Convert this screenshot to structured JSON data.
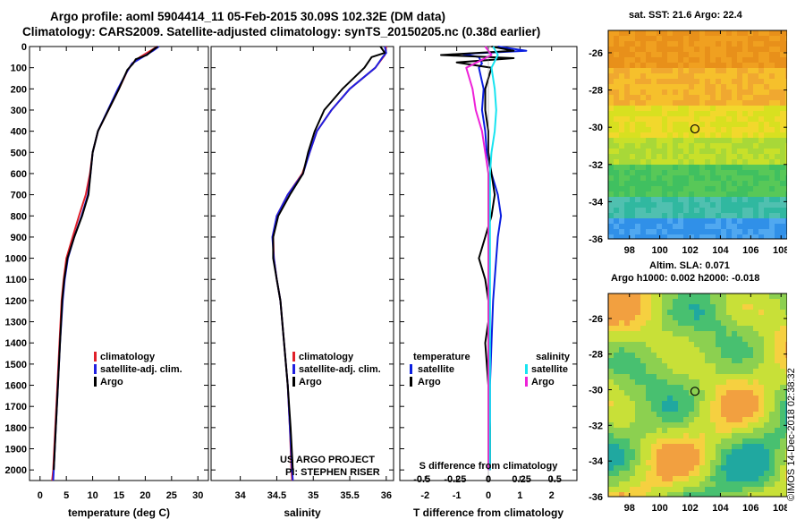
{
  "title": {
    "line1": "Argo profile: aoml 5904414_11 05-Feb-2015 30.09S 102.32E (DM data)",
    "line2": "Climatology: CARS2009. Satellite-adjusted climatology: synTS_20150205.nc (0.38d earlier)"
  },
  "colors": {
    "climatology": "#e0202a",
    "satellite": "#2020e0",
    "argo": "#000000",
    "sat_t": "#0a1ee0",
    "sat_s": "#18e4f0",
    "argo_s": "#ee22d8"
  },
  "maps": {
    "sst_title": "sat. SST: 21.6 Argo: 22.4",
    "sla_title_line1": "Altim. SLA: 0.071",
    "sla_title_line2": "Argo h1000: 0.002 h2000: -0.018",
    "y_ticks": [
      "-26",
      "-28",
      "-30",
      "-32",
      "-34",
      "-36"
    ],
    "x_ticks": [
      "98",
      "100",
      "102",
      "104",
      "106",
      "108"
    ],
    "argo_location": {
      "lon": 102.32,
      "lat": -30.09
    }
  },
  "credit": "©IMOS 14-Dec-2018 02:38:32",
  "chart_data": [
    {
      "type": "line",
      "panel": "temperature",
      "xlabel": "temperature (deg C)",
      "ylabel": "pressure",
      "xlim": [
        -2,
        32
      ],
      "ylim": [
        2050,
        0
      ],
      "x_ticks": [
        0,
        5,
        10,
        15,
        20,
        25,
        30
      ],
      "y_ticks": [
        0,
        100,
        200,
        300,
        400,
        500,
        600,
        700,
        800,
        900,
        1000,
        1100,
        1200,
        1300,
        1400,
        1500,
        1600,
        1700,
        1800,
        1900,
        2000
      ],
      "legend": [
        "climatology",
        "satellite-adj. clim.",
        "Argo"
      ],
      "series": [
        {
          "name": "climatology",
          "color": "#e0202a",
          "points": [
            [
              22.3,
              0
            ],
            [
              21,
              20
            ],
            [
              19,
              50
            ],
            [
              17.5,
              80
            ],
            [
              16.5,
              120
            ],
            [
              15,
              200
            ],
            [
              13,
              300
            ],
            [
              11,
              400
            ],
            [
              10,
              500
            ],
            [
              9.5,
              600
            ],
            [
              8.7,
              700
            ],
            [
              7.4,
              800
            ],
            [
              6.2,
              900
            ],
            [
              5,
              1000
            ],
            [
              4.5,
              1100
            ],
            [
              4.1,
              1200
            ],
            [
              3.7,
              1400
            ],
            [
              3.3,
              1600
            ],
            [
              2.9,
              1800
            ],
            [
              2.5,
              2000
            ],
            [
              2.3,
              2050
            ]
          ]
        },
        {
          "name": "satellite-adj. clim.",
          "color": "#2020e0",
          "points": [
            [
              22.6,
              0
            ],
            [
              21.5,
              20
            ],
            [
              19.5,
              50
            ],
            [
              17.5,
              80
            ],
            [
              16.5,
              120
            ],
            [
              14.8,
              200
            ],
            [
              12.9,
              300
            ],
            [
              11,
              400
            ],
            [
              10,
              500
            ],
            [
              9.6,
              600
            ],
            [
              9.1,
              700
            ],
            [
              7.9,
              800
            ],
            [
              6.5,
              900
            ],
            [
              5.3,
              1000
            ],
            [
              4.7,
              1100
            ],
            [
              4.3,
              1200
            ],
            [
              3.8,
              1400
            ],
            [
              3.4,
              1600
            ],
            [
              3,
              1800
            ],
            [
              2.6,
              2000
            ],
            [
              2.5,
              2050
            ]
          ]
        },
        {
          "name": "Argo",
          "color": "#000000",
          "points": [
            [
              22.4,
              0
            ],
            [
              21.5,
              15
            ],
            [
              20.3,
              40
            ],
            [
              18.2,
              60
            ],
            [
              17.7,
              80
            ],
            [
              16.6,
              110
            ],
            [
              15,
              200
            ],
            [
              13,
              300
            ],
            [
              11,
              400
            ],
            [
              10,
              500
            ],
            [
              9.6,
              600
            ],
            [
              9.2,
              700
            ],
            [
              8,
              800
            ],
            [
              6.5,
              900
            ],
            [
              5.2,
              1000
            ],
            [
              4.6,
              1100
            ],
            [
              4.2,
              1200
            ],
            [
              3.8,
              1400
            ],
            [
              3.4,
              1600
            ],
            [
              3,
              1800
            ],
            [
              2.6,
              2000
            ]
          ]
        }
      ]
    },
    {
      "type": "line",
      "panel": "salinity",
      "xlabel": "salinity",
      "xlim": [
        33.6,
        36.1
      ],
      "ylim": [
        2050,
        0
      ],
      "x_ticks": [
        34,
        34.5,
        35,
        35.5,
        36
      ],
      "x_tick_labels": [
        "34",
        "34.5",
        "35",
        "35.5",
        "36"
      ],
      "legend": [
        "climatology",
        "satellite-adj. clim.",
        "Argo"
      ],
      "annotation": [
        "US ARGO PROJECT",
        "PI: STEPHEN RISER"
      ],
      "series": [
        {
          "name": "climatology",
          "color": "#e0202a",
          "points": [
            [
              36,
              0
            ],
            [
              35.98,
              40
            ],
            [
              35.85,
              100
            ],
            [
              35.5,
              200
            ],
            [
              35.25,
              300
            ],
            [
              35.05,
              400
            ],
            [
              34.95,
              500
            ],
            [
              34.85,
              600
            ],
            [
              34.65,
              700
            ],
            [
              34.5,
              800
            ],
            [
              34.45,
              900
            ],
            [
              34.46,
              1000
            ],
            [
              34.5,
              1100
            ],
            [
              34.55,
              1200
            ],
            [
              34.6,
              1400
            ],
            [
              34.65,
              1600
            ],
            [
              34.68,
              1800
            ],
            [
              34.7,
              2000
            ],
            [
              34.71,
              2050
            ]
          ]
        },
        {
          "name": "satellite-adj. clim.",
          "color": "#2020e0",
          "points": [
            [
              35.98,
              0
            ],
            [
              36,
              30
            ],
            [
              35.95,
              50
            ],
            [
              35.85,
              100
            ],
            [
              35.5,
              200
            ],
            [
              35.25,
              300
            ],
            [
              35.05,
              400
            ],
            [
              34.95,
              500
            ],
            [
              34.86,
              600
            ],
            [
              34.65,
              700
            ],
            [
              34.5,
              800
            ],
            [
              34.44,
              900
            ],
            [
              34.46,
              1000
            ],
            [
              34.5,
              1100
            ],
            [
              34.55,
              1200
            ],
            [
              34.6,
              1400
            ],
            [
              34.65,
              1600
            ],
            [
              34.68,
              1800
            ],
            [
              34.71,
              2000
            ],
            [
              34.72,
              2050
            ]
          ]
        },
        {
          "name": "Argo",
          "color": "#000000",
          "points": [
            [
              35.92,
              0
            ],
            [
              35.98,
              30
            ],
            [
              35.8,
              50
            ],
            [
              35.7,
              100
            ],
            [
              35.4,
              200
            ],
            [
              35.15,
              300
            ],
            [
              35.02,
              400
            ],
            [
              34.93,
              500
            ],
            [
              34.86,
              600
            ],
            [
              34.68,
              700
            ],
            [
              34.52,
              800
            ],
            [
              34.45,
              900
            ],
            [
              34.45,
              1000
            ],
            [
              34.5,
              1100
            ],
            [
              34.55,
              1200
            ],
            [
              34.6,
              1400
            ],
            [
              34.65,
              1600
            ],
            [
              34.69,
              1800
            ],
            [
              34.72,
              2000
            ]
          ]
        }
      ]
    },
    {
      "type": "line",
      "panel": "difference",
      "xlabel": "T difference from climatology",
      "xlabel_top": "S difference from climatology",
      "xlim": [
        -2.8,
        2.8
      ],
      "ylim": [
        2050,
        0
      ],
      "x_ticks": [
        -2,
        -1,
        0,
        1,
        2
      ],
      "x_tick_labels": [
        "-2",
        "-1",
        "0",
        "1",
        "2"
      ],
      "s_ticks": [
        -0.5,
        -0.25,
        0,
        0.25,
        0.5
      ],
      "s_tick_labels": [
        "-0.5",
        "-0.25",
        "0",
        "0.25",
        "0.5"
      ],
      "legend_temperature": {
        "heading": "temperature",
        "items": [
          "satellite",
          "Argo"
        ]
      },
      "legend_salinity": {
        "heading": "salinity",
        "items": [
          "satellite",
          "Argo"
        ]
      },
      "series": [
        {
          "name": "temperature satellite",
          "color": "#0a1ee0",
          "points": [
            [
              0.3,
              0
            ],
            [
              1.2,
              20
            ],
            [
              -0.8,
              35
            ],
            [
              -0.3,
              50
            ],
            [
              -0.2,
              80
            ],
            [
              -0.3,
              100
            ],
            [
              -0.15,
              200
            ],
            [
              -0.2,
              300
            ],
            [
              -0.1,
              400
            ],
            [
              -0.05,
              500
            ],
            [
              0.1,
              600
            ],
            [
              0.3,
              700
            ],
            [
              0.4,
              800
            ],
            [
              0.3,
              900
            ],
            [
              0.25,
              1000
            ],
            [
              0.15,
              1200
            ],
            [
              0.1,
              1400
            ],
            [
              0.05,
              1600
            ],
            [
              0.05,
              1800
            ],
            [
              0.05,
              2000
            ]
          ]
        },
        {
          "name": "temperature Argo",
          "color": "#000000",
          "points": [
            [
              0.1,
              0
            ],
            [
              0.8,
              20
            ],
            [
              -1.5,
              40
            ],
            [
              0.8,
              55
            ],
            [
              -1,
              75
            ],
            [
              0.1,
              100
            ],
            [
              -0.1,
              200
            ],
            [
              -0.1,
              300
            ],
            [
              0,
              400
            ],
            [
              0,
              500
            ],
            [
              0.1,
              600
            ],
            [
              0.2,
              700
            ],
            [
              0.1,
              800
            ],
            [
              -0.1,
              900
            ],
            [
              -0.3,
              1000
            ],
            [
              -0.1,
              1100
            ],
            [
              0,
              1200
            ],
            [
              0,
              1300
            ],
            [
              -0.1,
              1400
            ],
            [
              0,
              1600
            ],
            [
              0.05,
              1800
            ],
            [
              0.05,
              2000
            ]
          ]
        },
        {
          "name": "salinity satellite",
          "color": "#18e4f0",
          "points": [
            [
              0.15,
              0
            ],
            [
              0.3,
              40
            ],
            [
              0.1,
              100
            ],
            [
              0.2,
              200
            ],
            [
              0.25,
              300
            ],
            [
              0.2,
              400
            ],
            [
              0.1,
              500
            ],
            [
              0.05,
              600
            ],
            [
              0.05,
              800
            ],
            [
              0.05,
              1000
            ],
            [
              0.05,
              1200
            ],
            [
              0.05,
              1400
            ],
            [
              0.05,
              1600
            ],
            [
              0.05,
              1800
            ],
            [
              0.05,
              2000
            ]
          ]
        },
        {
          "name": "salinity Argo",
          "color": "#ee22d8",
          "points": [
            [
              -0.1,
              0
            ],
            [
              0.1,
              40
            ],
            [
              -0.7,
              100
            ],
            [
              -0.5,
              200
            ],
            [
              -0.4,
              300
            ],
            [
              -0.2,
              400
            ],
            [
              -0.1,
              500
            ],
            [
              0,
              600
            ],
            [
              0,
              800
            ],
            [
              0,
              1000
            ],
            [
              0,
              1200
            ],
            [
              0,
              1400
            ],
            [
              0,
              1600
            ],
            [
              0,
              1800
            ],
            [
              0,
              2000
            ]
          ]
        }
      ]
    }
  ]
}
